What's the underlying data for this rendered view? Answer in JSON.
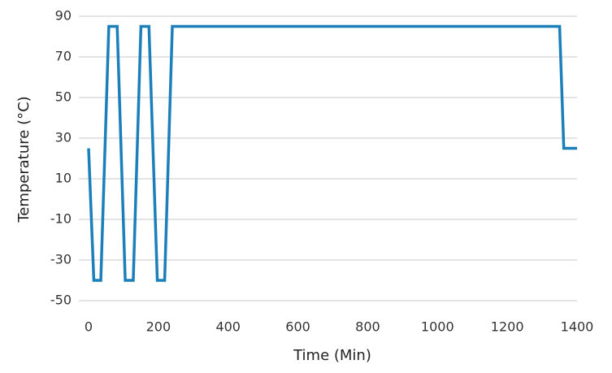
{
  "chart_data": {
    "type": "line",
    "x_label": "Time (Min)",
    "y_label": "Temperature (°C)",
    "x": [
      0,
      15,
      35,
      58,
      82,
      105,
      128,
      150,
      173,
      197,
      218,
      240,
      1350,
      1362,
      1400
    ],
    "values": [
      25,
      -40,
      -40,
      85,
      85,
      -40,
      -40,
      85,
      85,
      -40,
      -40,
      85,
      85,
      25,
      25
    ],
    "color": "#1b7fba",
    "xlim": [
      0,
      1400
    ],
    "xticks": [
      0,
      200,
      400,
      600,
      800,
      1000,
      1200,
      1400
    ],
    "ylim": [
      -50,
      90
    ],
    "yticks": [
      -50,
      -30,
      -10,
      10,
      30,
      50,
      70,
      90
    ],
    "grid": true
  }
}
